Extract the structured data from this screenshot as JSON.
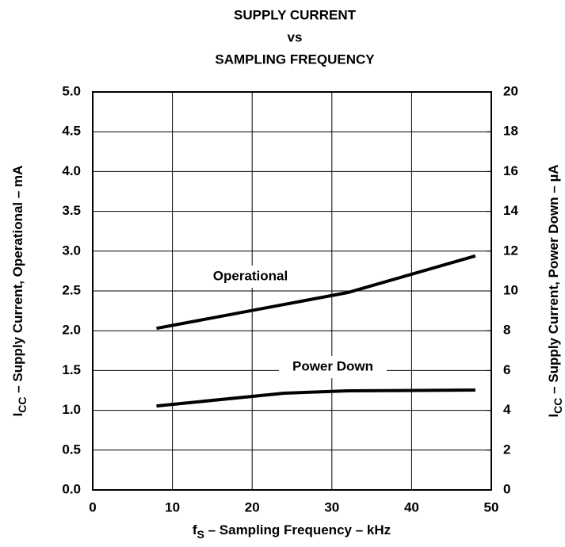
{
  "chart_data": {
    "type": "line",
    "title": [
      "SUPPLY CURRENT",
      "vs",
      "SAMPLING FREQUENCY"
    ],
    "xlabel": {
      "main": "f",
      "sub": "S",
      "rest": " – Sampling Frequency – kHz"
    },
    "ylabel": {
      "main": "I",
      "sub": "CC",
      "rest": " – Supply Current, Operational – mA"
    },
    "y2label": {
      "main": "I",
      "sub": "CC",
      "rest": " – Supply Current, Power Down – µA"
    },
    "x": [
      8,
      24,
      32,
      48
    ],
    "series": [
      {
        "name": "Operational",
        "color": "#000000",
        "values": [
          2.03,
          2.33,
          2.48,
          2.94
        ]
      },
      {
        "name": "Power Down",
        "color": "#000000",
        "axis": "y2",
        "values": [
          4.22,
          4.86,
          4.98,
          5.02
        ]
      }
    ],
    "xlim": [
      0,
      50
    ],
    "xticks": [
      0,
      10,
      20,
      30,
      40,
      50
    ],
    "ylim": [
      0,
      5
    ],
    "yticks": [
      {
        "value": 0,
        "label": "0.0"
      },
      {
        "value": 0.5,
        "label": "0.5"
      },
      {
        "value": 1,
        "label": "1.0"
      },
      {
        "value": 1.5,
        "label": "1.5"
      },
      {
        "value": 2,
        "label": "2.0"
      },
      {
        "value": 2.5,
        "label": "2.5"
      },
      {
        "value": 3,
        "label": "3.0"
      },
      {
        "value": 3.5,
        "label": "3.5"
      },
      {
        "value": 4,
        "label": "4.0"
      },
      {
        "value": 4.5,
        "label": "4.5"
      },
      {
        "value": 5,
        "label": "5.0"
      }
    ],
    "y2lim": [
      0,
      20
    ],
    "y2ticks": [
      0,
      2,
      4,
      6,
      8,
      10,
      12,
      14,
      16,
      18,
      20
    ],
    "grid": true
  }
}
